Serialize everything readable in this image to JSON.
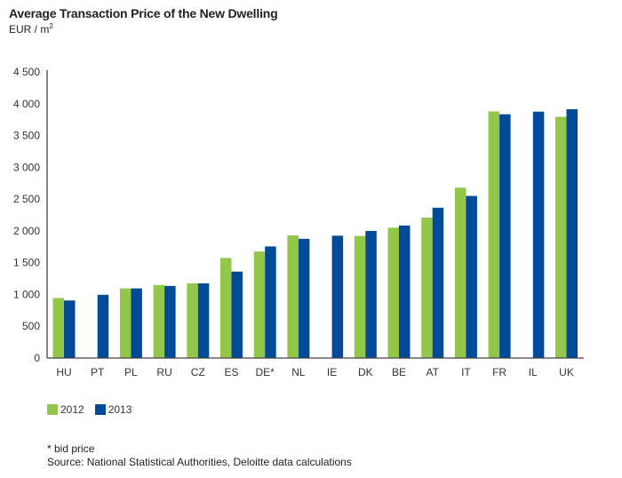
{
  "chart_data": {
    "type": "bar",
    "title": "Average Transaction Price of the New Dwelling",
    "unit_label": "EUR / m",
    "unit_superscript": "2",
    "xlabel": "",
    "ylabel": "EUR / m²",
    "ylim": [
      0,
      4500
    ],
    "yticks": [
      0,
      500,
      1000,
      1500,
      2000,
      2500,
      3000,
      3500,
      4000,
      4500
    ],
    "ytick_labels": [
      "0",
      "500",
      "1 000",
      "1 500",
      "2 000",
      "2 500",
      "3 000",
      "3 500",
      "4 000",
      "4 500"
    ],
    "grid": false,
    "categories": [
      "HU",
      "PT",
      "PL",
      "RU",
      "CZ",
      "ES",
      "DE*",
      "NL",
      "IE",
      "DK",
      "BE",
      "AT",
      "IT",
      "FR",
      "IL",
      "UK"
    ],
    "series": [
      {
        "name": "2012",
        "color": "#92c74a",
        "values": [
          945,
          null,
          1095,
          1150,
          1175,
          1575,
          1675,
          1930,
          null,
          1920,
          2050,
          2210,
          2680,
          3880,
          null,
          3795
        ]
      },
      {
        "name": "2013",
        "color": "#004a98",
        "values": [
          905,
          995,
          1095,
          1135,
          1175,
          1360,
          1755,
          1875,
          1925,
          2000,
          2085,
          2365,
          2550,
          3835,
          3875,
          3915
        ]
      }
    ],
    "legend": {
      "position": "bottom-left",
      "entries": [
        "2012",
        "2013"
      ]
    }
  },
  "footnotes": {
    "asterisk_note": "* bid price",
    "source": "Source: National Statistical Authorities, Deloitte data calculations"
  }
}
